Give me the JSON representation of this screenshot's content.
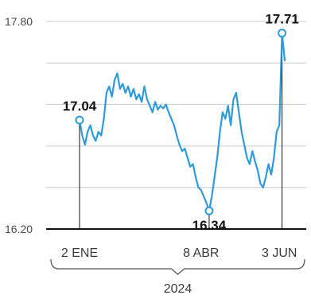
{
  "chart_data": {
    "type": "line",
    "title": "",
    "xlabel": "2024",
    "ylabel": "",
    "ylim": [
      16.2,
      17.8
    ],
    "y_ticks": [
      "17.80",
      "16.20"
    ],
    "y_tick_values": [
      17.8,
      16.2
    ],
    "x_ticks": [
      {
        "label": "2 ENE",
        "index": 0
      },
      {
        "label": "8 ABR",
        "index": 45
      },
      {
        "label": "3 JUN",
        "index": 74
      }
    ],
    "grid": true,
    "line_color": "#2f9ad8",
    "series": [
      {
        "values": [
          17.04,
          16.92,
          16.85,
          16.95,
          17.0,
          16.92,
          16.88,
          16.95,
          16.92,
          17.05,
          17.25,
          17.3,
          17.22,
          17.35,
          17.4,
          17.28,
          17.32,
          17.25,
          17.3,
          17.22,
          17.28,
          17.2,
          17.24,
          17.18,
          17.3,
          17.2,
          17.15,
          17.1,
          17.18,
          17.12,
          17.15,
          17.13,
          17.16,
          17.1,
          17.05,
          17.0,
          16.92,
          16.85,
          16.8,
          16.82,
          16.75,
          16.68,
          16.7,
          16.6,
          16.52,
          16.5,
          16.45,
          16.4,
          16.34,
          16.45,
          16.6,
          16.75,
          16.95,
          17.1,
          17.05,
          17.15,
          17.0,
          17.2,
          17.25,
          17.1,
          16.95,
          16.85,
          16.75,
          16.7,
          16.8,
          16.72,
          16.65,
          16.55,
          16.52,
          16.6,
          16.7,
          16.62,
          16.75,
          16.95,
          17.0,
          17.71,
          17.5
        ]
      }
    ],
    "annotations": [
      {
        "text": "17.04",
        "index": 0
      },
      {
        "text": "16.34",
        "index": 48
      },
      {
        "text": "17.71",
        "index": 75
      }
    ]
  }
}
